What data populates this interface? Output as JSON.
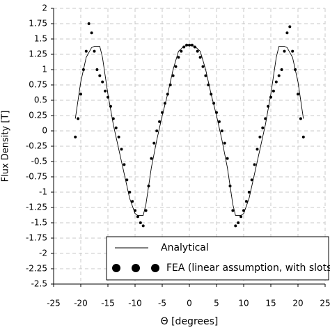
{
  "chart_data": {
    "type": "line",
    "xlabel": "Θ [degrees]",
    "ylabel": "Flux Density [T]",
    "xlim": [
      -25,
      25
    ],
    "xticks": [
      -25,
      -20,
      -15,
      -10,
      -5,
      0,
      5,
      10,
      15,
      20,
      25
    ],
    "ylim": [
      -2.5,
      2
    ],
    "yticks": [
      2,
      1.75,
      1.5,
      1.25,
      1,
      0.75,
      0.5,
      0.25,
      0,
      -0.25,
      -0.5,
      -0.75,
      -1,
      -1.25,
      -1.5,
      -1.75,
      -2,
      -2.25,
      -2.5
    ],
    "grid": true,
    "legend": "lower right",
    "series": [
      {
        "name": "Analytical",
        "mode": "line",
        "color": "#000000",
        "x": [
          -21,
          -20,
          -19,
          -18,
          -17.5,
          -16.5,
          -16,
          -15,
          -14,
          -13,
          -12,
          -11,
          -10,
          -9.5,
          -8.5,
          -8,
          -7,
          -6,
          -5,
          -4,
          -3,
          -2,
          -1,
          0,
          1,
          2,
          3,
          4,
          5,
          6,
          7,
          8,
          8.5,
          9.5,
          10,
          11,
          12,
          13,
          14,
          15,
          16,
          16.5,
          17.5,
          18,
          19,
          20,
          21
        ],
        "values": [
          0.2,
          0.8,
          1.2,
          1.36,
          1.38,
          1.38,
          1.2,
          0.6,
          0.1,
          -0.3,
          -0.7,
          -1.1,
          -1.35,
          -1.38,
          -1.38,
          -1.2,
          -0.6,
          -0.15,
          0.25,
          0.6,
          1.0,
          1.3,
          1.38,
          1.4,
          1.38,
          1.3,
          1.0,
          0.6,
          0.25,
          -0.15,
          -0.6,
          -1.2,
          -1.38,
          -1.38,
          -1.35,
          -1.1,
          -0.7,
          -0.3,
          0.1,
          0.6,
          1.2,
          1.38,
          1.38,
          1.36,
          1.2,
          0.8,
          0.2
        ]
      },
      {
        "name": "FEA (linear assumption, with slots)",
        "mode": "markers",
        "color": "#000000",
        "x": [
          -21,
          -20.5,
          -20,
          -19.5,
          -19,
          -18.5,
          -18,
          -17.5,
          -17,
          -16.5,
          -16,
          -15.5,
          -15,
          -14.5,
          -14,
          -13.5,
          -13,
          -12.5,
          -12,
          -11.5,
          -11,
          -10.5,
          -10,
          -9.5,
          -9,
          -8.5,
          -8,
          -7.5,
          -7,
          -6.5,
          -6,
          -5.5,
          -5,
          -4.5,
          -4,
          -3.5,
          -3,
          -2.5,
          -2,
          -1.5,
          -1,
          -0.5,
          0,
          0.5,
          1,
          1.5,
          2,
          2.5,
          3,
          3.5,
          4,
          4.5,
          5,
          5.5,
          6,
          6.5,
          7,
          7.5,
          8,
          8.5,
          9,
          9.5,
          10,
          10.5,
          11,
          11.5,
          12,
          12.5,
          13,
          13.5,
          14,
          14.5,
          15,
          15.5,
          16,
          16.5,
          17,
          17.5,
          18,
          18.5,
          19,
          19.5,
          20,
          20.5,
          21
        ],
        "values": [
          -0.1,
          0.2,
          0.6,
          1.0,
          1.3,
          1.75,
          1.6,
          1.3,
          1.0,
          0.9,
          0.8,
          0.65,
          0.55,
          0.4,
          0.2,
          0.05,
          -0.1,
          -0.3,
          -0.55,
          -0.8,
          -1.0,
          -1.15,
          -1.3,
          -1.4,
          -1.5,
          -1.55,
          -1.3,
          -0.9,
          -0.45,
          -0.2,
          0,
          0.15,
          0.3,
          0.45,
          0.6,
          0.75,
          0.9,
          1.05,
          1.2,
          1.3,
          1.37,
          1.4,
          1.4,
          1.4,
          1.37,
          1.3,
          1.2,
          1.05,
          0.9,
          0.75,
          0.6,
          0.45,
          0.3,
          0.15,
          0,
          -0.2,
          -0.45,
          -0.9,
          -1.3,
          -1.55,
          -1.5,
          -1.4,
          -1.3,
          -1.15,
          -1.0,
          -0.8,
          -0.55,
          -0.3,
          -0.1,
          0.05,
          0.2,
          0.4,
          0.55,
          0.65,
          0.8,
          0.9,
          1.0,
          1.3,
          1.6,
          1.7,
          1.3,
          1.0,
          0.6,
          0.2,
          -0.1
        ]
      }
    ]
  }
}
